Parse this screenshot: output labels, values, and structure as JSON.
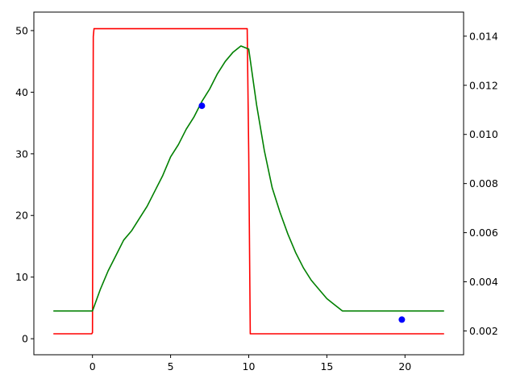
{
  "chart_data": {
    "type": "line",
    "title": "",
    "xlabel": "",
    "ylabel": "",
    "xlim": [
      -3.75,
      23.75
    ],
    "ylim": [
      -2.6,
      53.0
    ],
    "y2lim": [
      0.00103,
      0.01498
    ],
    "grid": false,
    "legend": "none",
    "x_ticks": [
      0,
      5,
      10,
      15,
      20
    ],
    "x_tick_labels": [
      "0",
      "5",
      "10",
      "15",
      "20"
    ],
    "y_ticks": [
      0,
      10,
      20,
      30,
      40,
      50
    ],
    "y_tick_labels": [
      "0",
      "10",
      "20",
      "30",
      "40",
      "50"
    ],
    "y2_ticks": [
      0.002,
      0.004,
      0.006,
      0.008,
      0.01,
      0.012,
      0.014
    ],
    "y2_tick_labels": [
      "0.002",
      "0.004",
      "0.006",
      "0.008",
      "0.010",
      "0.012",
      "0.014"
    ],
    "series": [
      {
        "axis": "left",
        "color": "#ff0000",
        "x": [
          -2.5,
          -0.05,
          0.0,
          0.05,
          0.1,
          9.7,
          9.9,
          10.0,
          10.1,
          22.5
        ],
        "y": [
          0.8,
          0.8,
          1.0,
          49.0,
          50.3,
          50.3,
          50.3,
          30.0,
          0.8,
          0.8
        ]
      },
      {
        "axis": "left",
        "color": "#008000",
        "x": [
          -2.5,
          0.0,
          0.5,
          1.0,
          1.5,
          2.0,
          2.5,
          3.0,
          3.5,
          4.0,
          4.5,
          5.0,
          5.5,
          6.0,
          6.5,
          7.0,
          7.5,
          8.0,
          8.5,
          9.0,
          9.5,
          10.0,
          10.5,
          11.0,
          11.5,
          12.0,
          12.5,
          13.0,
          13.5,
          14.0,
          14.5,
          15.0,
          15.5,
          16.0,
          17.0,
          18.0,
          19.0,
          20.0,
          21.0,
          22.5
        ],
        "y": [
          4.5,
          4.5,
          8.0,
          11.0,
          13.5,
          16.0,
          17.5,
          19.5,
          21.5,
          24.0,
          26.5,
          29.5,
          31.5,
          34.0,
          36.0,
          38.5,
          40.5,
          43.0,
          45.0,
          46.5,
          47.5,
          47.0,
          38.0,
          30.5,
          24.5,
          20.5,
          17.0,
          14.0,
          11.5,
          9.5,
          8.0,
          6.5,
          5.5,
          4.5,
          4.5,
          4.5,
          4.5,
          4.5,
          4.5,
          4.5
        ]
      }
    ],
    "points": {
      "color": "#0000ff",
      "x": [
        7.0,
        19.8
      ],
      "y": [
        37.8,
        3.1
      ]
    }
  }
}
